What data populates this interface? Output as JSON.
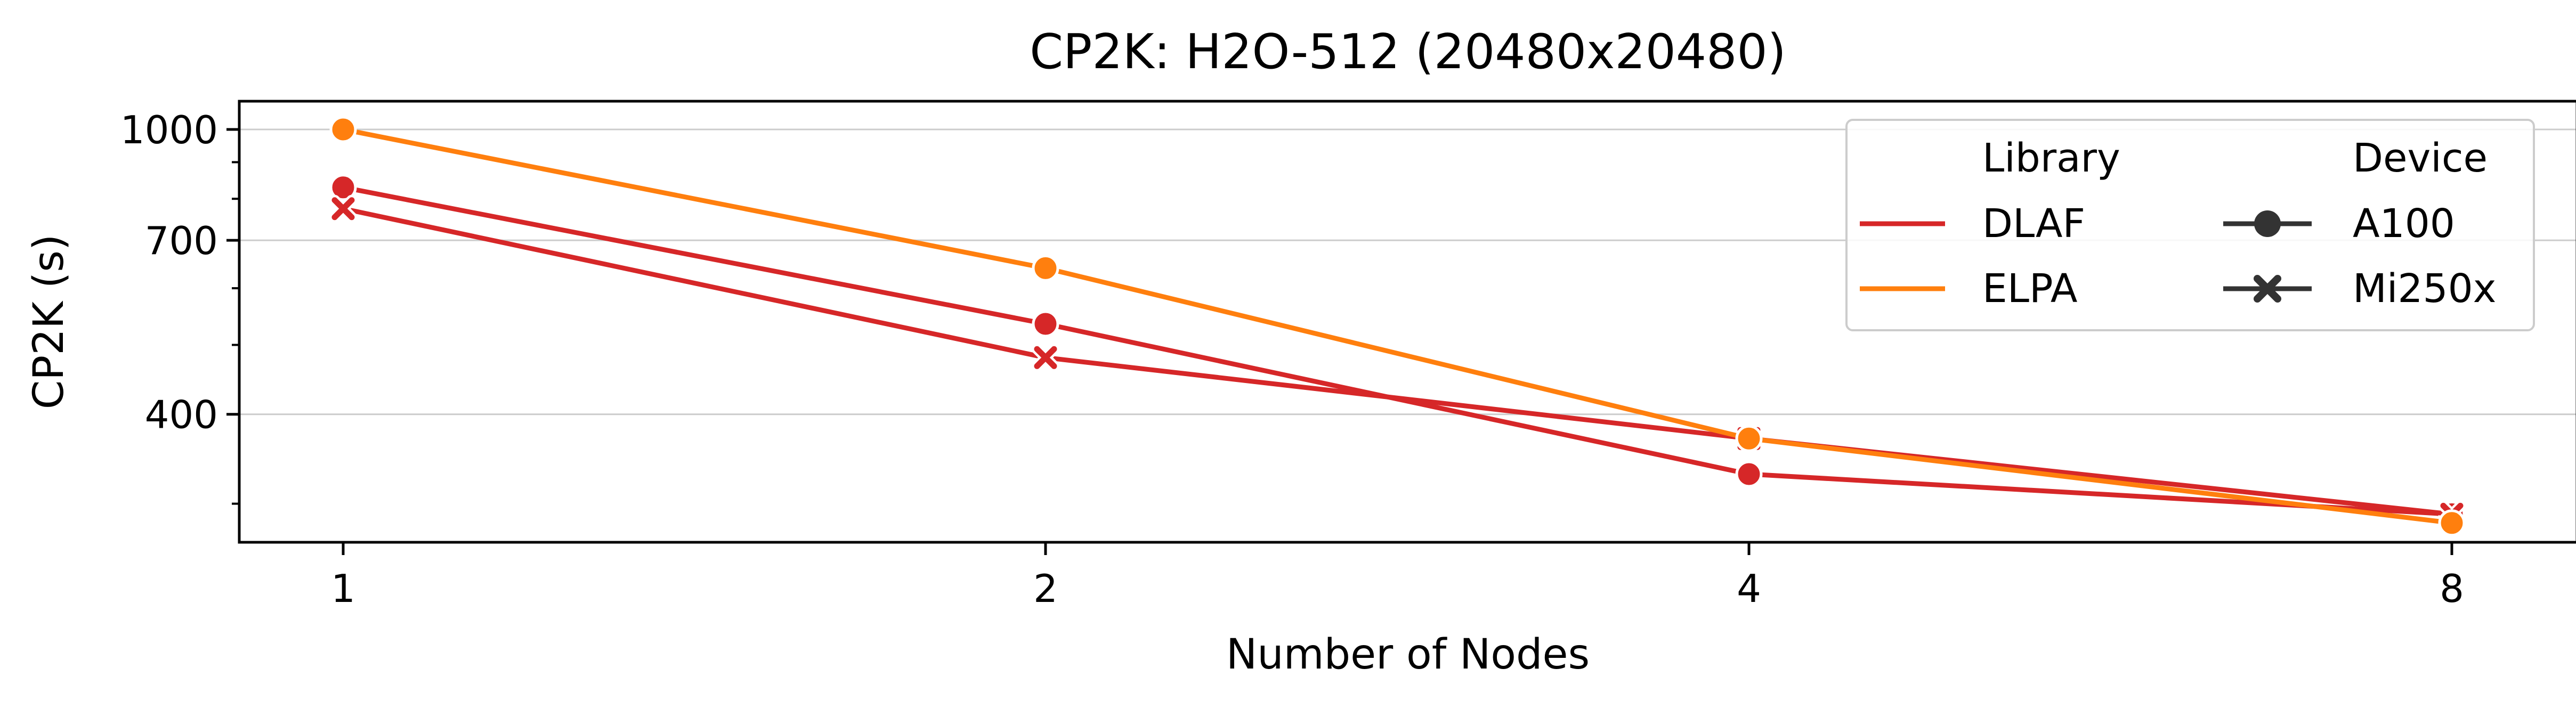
{
  "chart_data": {
    "type": "line",
    "title": "CP2K: H2O-512 (20480x20480)",
    "xlabel": "Number of Nodes",
    "ylabel": "CP2K (s)",
    "x_scale": "log2",
    "y_scale": "log",
    "x": [
      1,
      2,
      4,
      8
    ],
    "x_tick_labels": [
      "1",
      "2",
      "4",
      "8"
    ],
    "y_ticks": [
      400,
      700,
      1000
    ],
    "y_tick_labels": [
      "400",
      "700",
      "1000"
    ],
    "ylim": [
      265,
      1095
    ],
    "grid": "horizontal",
    "legend_position": "top-right",
    "legend": {
      "library_title": "Library",
      "device_title": "Device",
      "libraries": [
        "DLAF",
        "ELPA"
      ],
      "devices": [
        "A100",
        "Mi250x"
      ]
    },
    "colors": {
      "DLAF": "#d62728",
      "ELPA": "#ff7f0e",
      "device_marker": "#333333"
    },
    "series": [
      {
        "library": "DLAF",
        "device": "A100",
        "marker": "circle",
        "values": [
          830,
          535,
          330,
          290
        ]
      },
      {
        "library": "DLAF",
        "device": "Mi250x",
        "marker": "x",
        "values": [
          775,
          480,
          370,
          290
        ]
      },
      {
        "library": "ELPA",
        "device": "A100",
        "marker": "circle",
        "values": [
          1000,
          640,
          370,
          282
        ]
      }
    ]
  }
}
